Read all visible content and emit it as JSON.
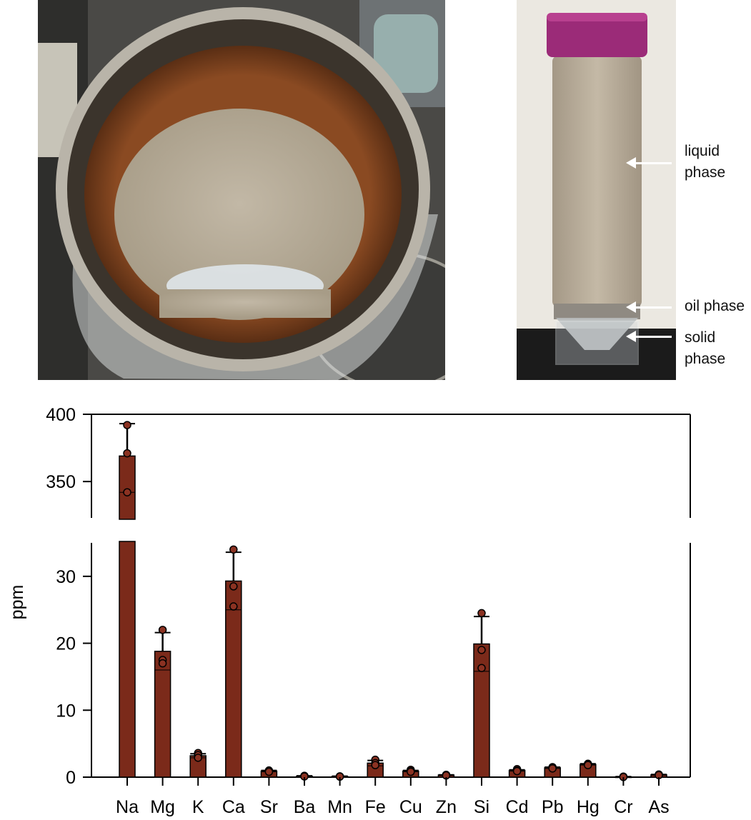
{
  "annotations": {
    "liquid": "liquid\nphase",
    "oil": "oil phase",
    "solid": "solid\nphase"
  },
  "colors": {
    "bar": "#7b2a1a",
    "marker": "#8b3222",
    "axis": "#000000"
  },
  "chart_data": {
    "type": "bar",
    "title": "",
    "xlabel": "",
    "ylabel": "ppm",
    "broken_axis": true,
    "ylim_lower": [
      0,
      35
    ],
    "ylim_upper": [
      330,
      400
    ],
    "yticks_lower": [
      0,
      10,
      20,
      30
    ],
    "yticks_upper": [
      350,
      400
    ],
    "categories": [
      "Na",
      "Mg",
      "K",
      "Ca",
      "Sr",
      "Ba",
      "Mn",
      "Fe",
      "Cu",
      "Zn",
      "Si",
      "Cd",
      "Pb",
      "Hg",
      "Cr",
      "As"
    ],
    "values": [
      369,
      18.8,
      3.2,
      29.3,
      0.9,
      0.15,
      0.1,
      2.1,
      0.9,
      0.3,
      19.9,
      1.0,
      1.4,
      1.9,
      0.05,
      0.35
    ],
    "error_upper": [
      393,
      21.6,
      3.5,
      33.6,
      1.0,
      0.2,
      0.15,
      2.5,
      1.0,
      0.35,
      24.0,
      1.1,
      1.5,
      2.0,
      0.08,
      0.4
    ],
    "error_lower": [
      342,
      16.0,
      2.9,
      25.0,
      0.8,
      0.1,
      0.05,
      1.7,
      0.8,
      0.25,
      15.8,
      0.9,
      1.3,
      1.8,
      0.02,
      0.3
    ],
    "points": [
      [
        392,
        371,
        342
      ],
      [
        22.0,
        17.5,
        17.0
      ],
      [
        3.6,
        3.3,
        2.9
      ],
      [
        34.0,
        28.5,
        25.5
      ],
      [
        1.0,
        0.9,
        0.8
      ],
      [
        0.2,
        0.15,
        0.1
      ],
      [
        0.12,
        0.1,
        0.08
      ],
      [
        2.6,
        2.1,
        1.8
      ],
      [
        1.1,
        0.9,
        0.8
      ],
      [
        0.35,
        0.3,
        0.25
      ],
      [
        24.5,
        19.0,
        16.3
      ],
      [
        1.2,
        1.0,
        0.9
      ],
      [
        1.5,
        1.4,
        1.3
      ],
      [
        2.0,
        1.9,
        1.8
      ],
      [
        0.08,
        0.05,
        0.02
      ],
      [
        0.4,
        0.35,
        0.3
      ]
    ]
  }
}
